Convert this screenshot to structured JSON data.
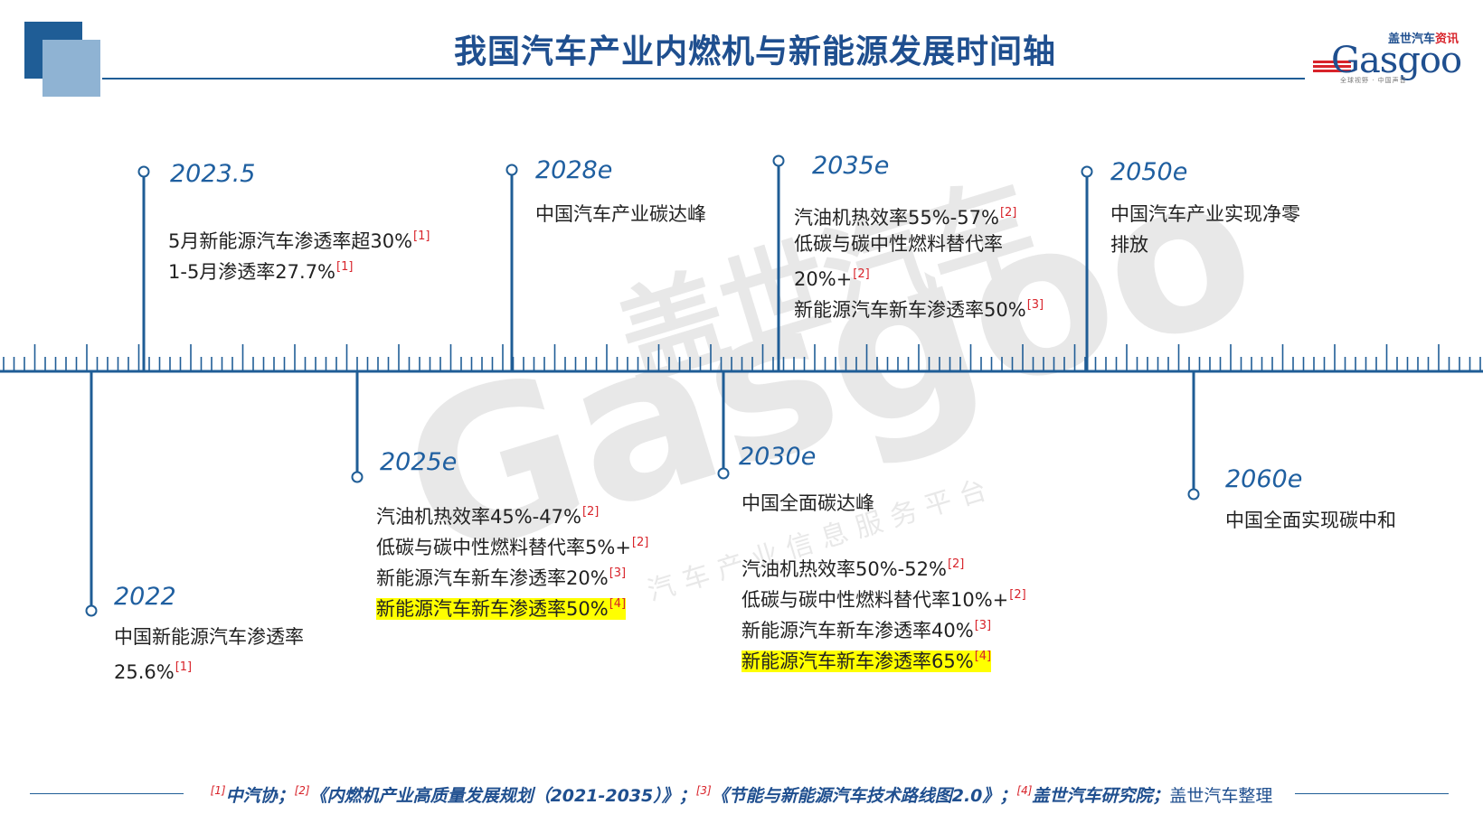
{
  "header": {
    "title": "我国汽车产业内燃机与新能源发展时间轴"
  },
  "logo": {
    "cn_blue": "盖世汽车",
    "cn_red": "资讯",
    "en": "Gasgoo",
    "sub": "全球视野 · 中国声音"
  },
  "watermark": {
    "cn": "盖世汽车",
    "en": "Gasgoo",
    "sub": "汽车产业信息服务平台"
  },
  "colors": {
    "primary": "#1f5d96",
    "accent_light": "#8fb3d3",
    "ref_red": "#d8232a",
    "highlight": "#ffff00"
  },
  "events": [
    {
      "id": "e2022",
      "year": "2022",
      "lines": [
        {
          "text": "中国新能源汽车渗透率",
          "ref": "",
          "highlight": false
        },
        {
          "text": "25.6%",
          "ref": "[1]",
          "highlight": false
        }
      ]
    },
    {
      "id": "e20235",
      "year": "2023.5",
      "lines": [
        {
          "text": "5月新能源汽车渗透率超30%",
          "ref": "[1]",
          "highlight": false
        },
        {
          "text": "1-5月渗透率27.7%",
          "ref": "[1]",
          "highlight": false
        }
      ]
    },
    {
      "id": "e2025",
      "year": "2025e",
      "lines": [
        {
          "text": "汽油机热效率45%-47%",
          "ref": "[2]",
          "highlight": false
        },
        {
          "text": "低碳与碳中性燃料替代率5%+",
          "ref": "[2]",
          "highlight": false
        },
        {
          "text": "新能源汽车新车渗透率20%",
          "ref": "[3]",
          "highlight": false
        },
        {
          "text": "新能源汽车新车渗透率50%",
          "ref": "[4]",
          "highlight": true
        }
      ]
    },
    {
      "id": "e2028",
      "year": "2028e",
      "lines": [
        {
          "text": "中国汽车产业碳达峰",
          "ref": "",
          "highlight": false
        }
      ]
    },
    {
      "id": "e2030",
      "year": "2030e",
      "lines": [
        {
          "text": "中国全面碳达峰",
          "ref": "",
          "highlight": false
        },
        {
          "text": "",
          "ref": "",
          "highlight": false
        },
        {
          "text": "汽油机热效率50%-52%",
          "ref": "[2]",
          "highlight": false
        },
        {
          "text": "低碳与碳中性燃料替代率10%+",
          "ref": "[2]",
          "highlight": false
        },
        {
          "text": "新能源汽车新车渗透率40%",
          "ref": "[3]",
          "highlight": false
        },
        {
          "text": "新能源汽车新车渗透率65%",
          "ref": "[4]",
          "highlight": true
        }
      ]
    },
    {
      "id": "e2035",
      "year": "2035e",
      "lines": [
        {
          "text": "汽油机热效率55%-57%",
          "ref": "[2]",
          "highlight": false
        },
        {
          "text": "低碳与碳中性燃料替代率",
          "ref": "",
          "highlight": false
        },
        {
          "text": "20%+",
          "ref": "[2]",
          "highlight": false
        },
        {
          "text": "新能源汽车新车渗透率50%",
          "ref": "[3]",
          "highlight": false
        }
      ]
    },
    {
      "id": "e2050",
      "year": "2050e",
      "lines": [
        {
          "text": "中国汽车产业实现净零",
          "ref": "",
          "highlight": false
        },
        {
          "text": "排放",
          "ref": "",
          "highlight": false
        }
      ]
    },
    {
      "id": "e2060",
      "year": "2060e",
      "lines": [
        {
          "text": "中国全面实现碳中和",
          "ref": "",
          "highlight": false
        }
      ]
    }
  ],
  "footer": {
    "r1": "[1]",
    "s1": "中汽协；",
    "r2": "[2]",
    "s2": "《内燃机产业高质量发展规划（2021-2035）》；",
    "r3": "[3]",
    "s3": "《节能与新能源汽车技术路线图2.0》；",
    "r4": "[4]",
    "s4": "盖世汽车研究院；",
    "tail": "盖世汽车整理"
  }
}
